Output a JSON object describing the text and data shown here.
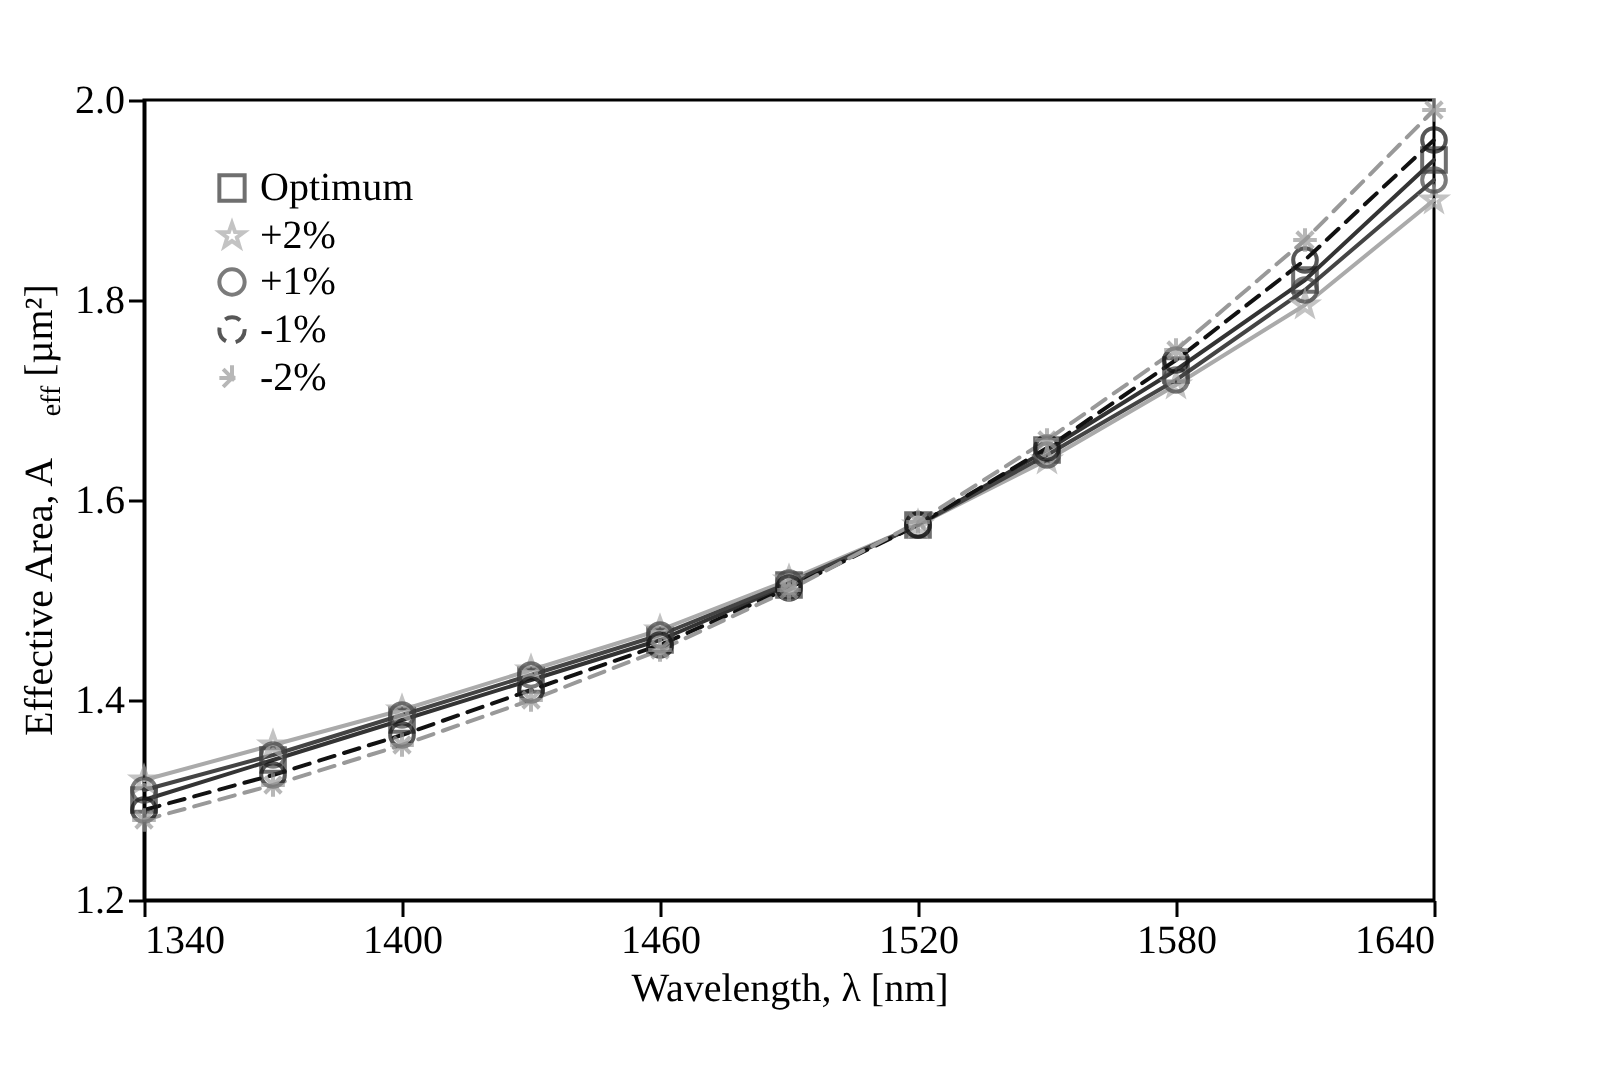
{
  "chart_data": {
    "type": "line",
    "xlabel": "Wavelength, λ [nm]",
    "ylabel": "Effective Area, A$_{eff}$ [µm²]",
    "x": [
      1340,
      1370,
      1400,
      1430,
      1460,
      1490,
      1520,
      1550,
      1580,
      1610,
      1640
    ],
    "xlim": [
      1340,
      1640
    ],
    "xticks": [
      1340,
      1400,
      1460,
      1520,
      1580,
      1640
    ],
    "ylim": [
      1.2,
      2.0
    ],
    "yticks": [
      1.2,
      1.4,
      1.6,
      1.8,
      {
        "value": 2.0,
        "label": "2.0"
      }
    ],
    "grid": false,
    "legend": "top left",
    "series": [
      {
        "name": "Optimum",
        "color": "#333333",
        "marker": "square",
        "line_style": "solid",
        "values": [
          1.3,
          1.34,
          1.38,
          1.42,
          1.46,
          1.515,
          1.575,
          1.65,
          1.73,
          1.82,
          1.94
        ]
      },
      {
        "name": "+2%",
        "color": "#aaaaaa",
        "marker": "star",
        "line_style": "solid",
        "values": [
          1.32,
          1.355,
          1.39,
          1.43,
          1.47,
          1.52,
          1.575,
          1.64,
          1.715,
          1.795,
          1.9
        ]
      },
      {
        "name": "+1%",
        "color": "#444444",
        "marker": "circle",
        "line_style": "solid",
        "values": [
          1.31,
          1.345,
          1.385,
          1.425,
          1.465,
          1.517,
          1.575,
          1.645,
          1.72,
          1.81,
          1.92
        ]
      },
      {
        "name": "-1%",
        "color": "#111111",
        "marker": "circle",
        "line_style": "dashed",
        "values": [
          1.29,
          1.325,
          1.365,
          1.41,
          1.455,
          1.512,
          1.575,
          1.652,
          1.74,
          1.84,
          1.96
        ]
      },
      {
        "name": "-2%",
        "color": "#999999",
        "marker": "cross",
        "line_style": "dashed",
        "values": [
          1.28,
          1.315,
          1.355,
          1.4,
          1.45,
          1.51,
          1.578,
          1.66,
          1.75,
          1.86,
          1.99
        ]
      }
    ]
  }
}
